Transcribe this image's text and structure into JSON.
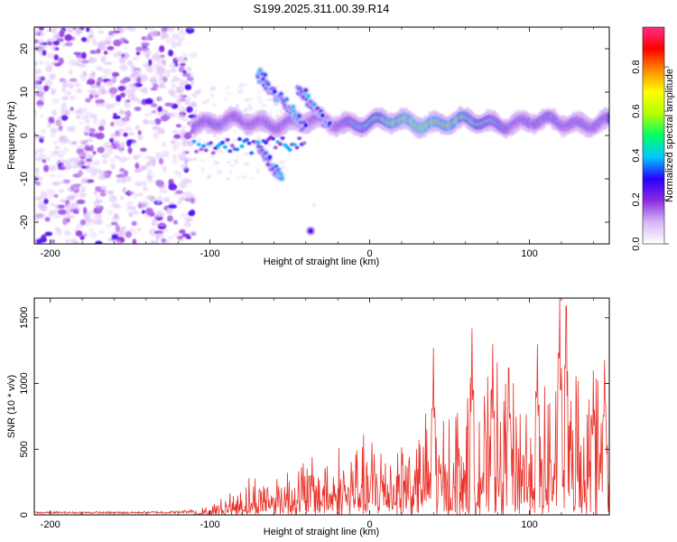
{
  "figure": {
    "title": "S199.2025.311.00.39.R14"
  },
  "chart_data": [
    {
      "type": "heatmap",
      "name": "spectrogram",
      "xlabel": "Height of straight line (km)",
      "ylabel": "Frequency (Hz)",
      "xlim": [
        -210,
        150
      ],
      "ylim": [
        -25,
        25
      ],
      "xticks": [
        -200,
        -100,
        0,
        100
      ],
      "yticks": [
        -20,
        -10,
        0,
        10,
        20
      ],
      "colorbar": {
        "label": "Normalized spectral amplitude",
        "range": [
          0,
          0.98
        ],
        "ticks": [
          0.0,
          0.2,
          0.4,
          0.6,
          0.8
        ],
        "colormap": [
          "#ffffff",
          "#d7b6f5",
          "#8b2be2",
          "#2a00ff",
          "#00c8ff",
          "#00ff66",
          "#b4ff00",
          "#ffff00",
          "#ff8c00",
          "#ff0000",
          "#ff2d8a"
        ]
      },
      "features": {
        "noise_region_x": [
          -210,
          -110
        ],
        "signal_band": {
          "x": [
            -110,
            150
          ],
          "center_freq_hz": 3,
          "halfwidth_hz": 2.5,
          "peak_amplitude": 0.95
        },
        "side_branches": [
          {
            "x": [
              -70,
              -40
            ],
            "freq_start": 14,
            "freq_end": 2
          },
          {
            "x": [
              -70,
              -55
            ],
            "freq_start": -2,
            "freq_end": -10
          },
          {
            "x": [
              -45,
              -25
            ],
            "freq_start": 11,
            "freq_end": 2
          }
        ],
        "isolated_spot": {
          "x": -37,
          "freq": -22
        }
      }
    },
    {
      "type": "line",
      "name": "snr",
      "xlabel": "Height of straight line (km)",
      "ylabel": "SNR (10 * v/v)",
      "xlim": [
        -210,
        150
      ],
      "ylim": [
        0,
        1650
      ],
      "xticks": [
        -200,
        -100,
        0,
        100
      ],
      "yticks": [
        0,
        500,
        1000,
        1500
      ],
      "color": "#e8322a",
      "envelope": {
        "x": [
          -210,
          -150,
          -120,
          -100,
          -80,
          -60,
          -40,
          -20,
          0,
          20,
          40,
          60,
          80,
          100,
          120,
          150
        ],
        "y": [
          25,
          25,
          30,
          60,
          250,
          350,
          450,
          500,
          560,
          700,
          700,
          900,
          1000,
          1000,
          1100,
          1000
        ]
      },
      "peaks": [
        {
          "x": 40,
          "y": 1270
        },
        {
          "x": 64,
          "y": 1420
        },
        {
          "x": 77,
          "y": 1300
        },
        {
          "x": 87,
          "y": 1120
        },
        {
          "x": 105,
          "y": 1300
        },
        {
          "x": 119,
          "y": 1650
        },
        {
          "x": 123,
          "y": 1590
        },
        {
          "x": 140,
          "y": 1100
        },
        {
          "x": 147,
          "y": 1180
        }
      ]
    }
  ]
}
